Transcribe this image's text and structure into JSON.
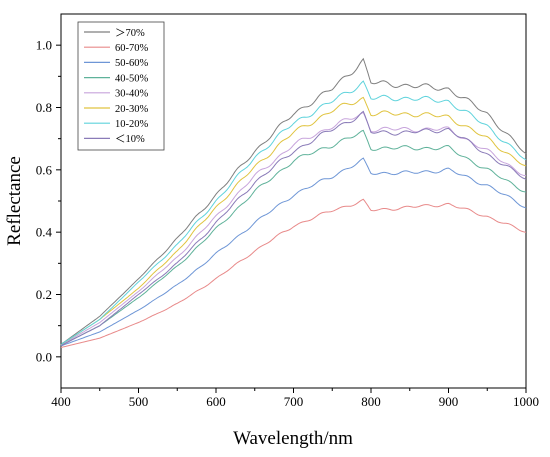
{
  "chart_data": {
    "type": "line",
    "xlabel": "Wavelength/nm",
    "ylabel": "Reflectance",
    "xlim": [
      400,
      1000
    ],
    "ylim": [
      -0.1,
      1.1
    ],
    "x_ticks": [
      400,
      500,
      600,
      700,
      800,
      900,
      1000
    ],
    "x_tick_labels": [
      "400",
      "500",
      "600",
      "700",
      "800",
      "900",
      "1000"
    ],
    "y_ticks": [
      0.0,
      0.2,
      0.4,
      0.6,
      0.8,
      1.0
    ],
    "y_tick_labels": [
      "0.0",
      "0.2",
      "0.4",
      "0.6",
      "0.8",
      "1.0"
    ],
    "grid": false,
    "legend_position": "top-left",
    "x": [
      400,
      450,
      500,
      550,
      600,
      650,
      700,
      750,
      790,
      800,
      850,
      900,
      950,
      1000
    ],
    "series": [
      {
        "name": "＞70%",
        "color": "#7f7f7f",
        "values": [
          0.04,
          0.13,
          0.25,
          0.38,
          0.52,
          0.66,
          0.78,
          0.86,
          0.95,
          0.88,
          0.87,
          0.86,
          0.78,
          0.65
        ]
      },
      {
        "name": "60-70%",
        "color": "#e88a8a",
        "values": [
          0.03,
          0.06,
          0.11,
          0.17,
          0.25,
          0.34,
          0.42,
          0.47,
          0.5,
          0.47,
          0.48,
          0.49,
          0.45,
          0.4
        ]
      },
      {
        "name": "50-60%",
        "color": "#6e96d6",
        "values": [
          0.035,
          0.08,
          0.15,
          0.23,
          0.33,
          0.43,
          0.52,
          0.58,
          0.63,
          0.59,
          0.59,
          0.6,
          0.55,
          0.48
        ]
      },
      {
        "name": "40-50%",
        "color": "#5fb29a",
        "values": [
          0.037,
          0.1,
          0.19,
          0.29,
          0.41,
          0.53,
          0.63,
          0.68,
          0.72,
          0.67,
          0.67,
          0.67,
          0.6,
          0.53
        ]
      },
      {
        "name": "30-40%",
        "color": "#c7a4dc",
        "values": [
          0.038,
          0.11,
          0.21,
          0.32,
          0.45,
          0.58,
          0.68,
          0.74,
          0.78,
          0.73,
          0.73,
          0.73,
          0.66,
          0.58
        ]
      },
      {
        "name": "20-30%",
        "color": "#e0c440",
        "values": [
          0.039,
          0.12,
          0.22,
          0.34,
          0.48,
          0.61,
          0.72,
          0.79,
          0.83,
          0.78,
          0.78,
          0.77,
          0.7,
          0.61
        ]
      },
      {
        "name": "10-20%",
        "color": "#5fd3dc",
        "values": [
          0.04,
          0.12,
          0.24,
          0.36,
          0.5,
          0.64,
          0.75,
          0.82,
          0.88,
          0.83,
          0.83,
          0.82,
          0.74,
          0.63
        ]
      },
      {
        "name": "＜10%",
        "color": "#8a7bb8",
        "values": [
          0.036,
          0.1,
          0.2,
          0.3,
          0.43,
          0.56,
          0.66,
          0.73,
          0.78,
          0.72,
          0.72,
          0.73,
          0.65,
          0.57
        ]
      }
    ]
  }
}
